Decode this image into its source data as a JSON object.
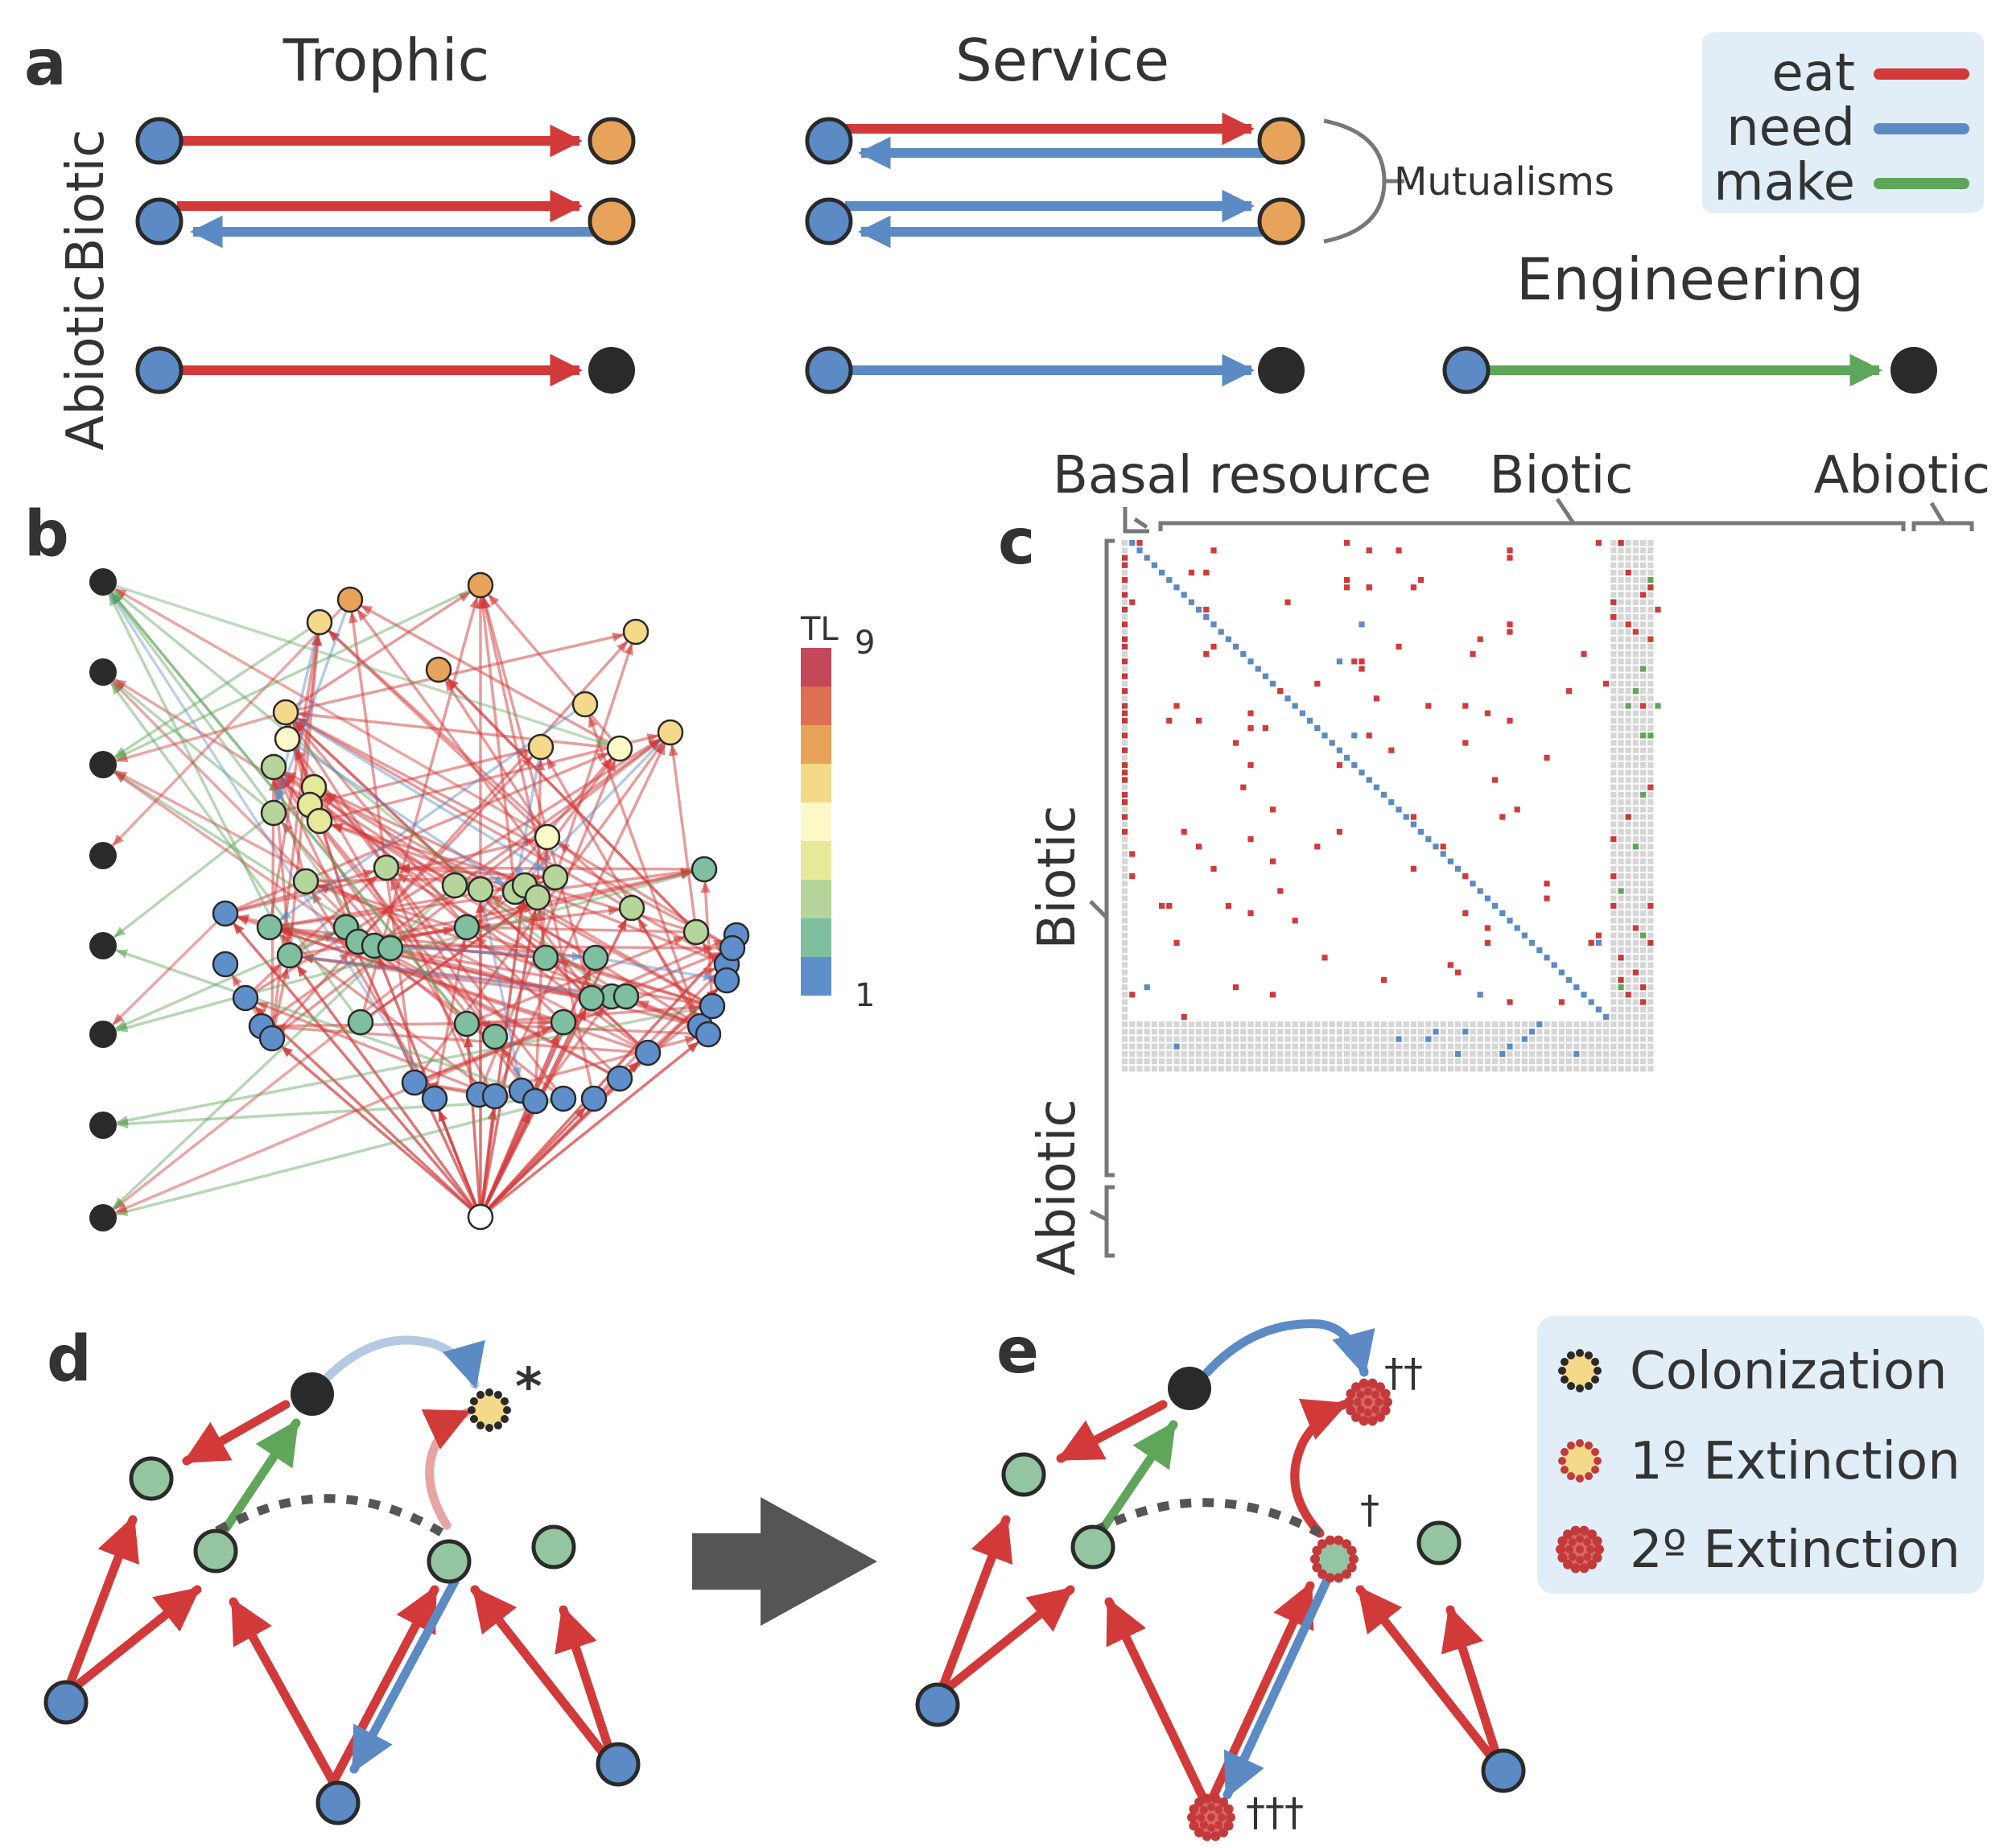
{
  "panels": {
    "a": {
      "letter": "a",
      "col_trophic": "Trophic",
      "col_service": "Service",
      "row_biotic": "Biotic",
      "row_abiotic": "Abiotic",
      "engineering": "Engineering",
      "mutualisms": "Mutualisms",
      "legend": [
        {
          "label": "eat",
          "color": "#d23a3a"
        },
        {
          "label": "need",
          "color": "#5b8ac4"
        },
        {
          "label": "make",
          "color": "#5fa55a"
        }
      ]
    },
    "b": {
      "letter": "b",
      "colorbar_title": "TL",
      "colorbar_max": "9",
      "colorbar_min": "1",
      "colorbar_colors": [
        "#c4475a",
        "#dd7050",
        "#e8a35a",
        "#f5d98a",
        "#fdf8c8",
        "#e6e89a",
        "#b6d59a",
        "#7fbf9f",
        "#5f8fca"
      ]
    },
    "c": {
      "letter": "c",
      "top_basal": "Basal resource",
      "top_biotic": "Biotic",
      "top_abiotic": "Abiotic",
      "left_biotic": "Biotic",
      "left_abiotic": "Abiotic"
    },
    "d": {
      "letter": "d",
      "star": "*"
    },
    "e": {
      "letter": "e",
      "dagger1": "†",
      "dagger2": "††",
      "dagger3": "†††",
      "legend": [
        {
          "label": "Colonization"
        },
        {
          "label": "1º Extinction"
        },
        {
          "label": "2º Extinction"
        }
      ]
    }
  },
  "colors": {
    "eat": "#d23a3a",
    "need": "#5b8ac4",
    "make": "#5fa55a",
    "species_blue": "#5b8ac4",
    "species_orange": "#e8a35a",
    "abiotic": "#2a2a2a",
    "legend_bg": "#e1eef8",
    "node_green": "#93c6a0"
  }
}
